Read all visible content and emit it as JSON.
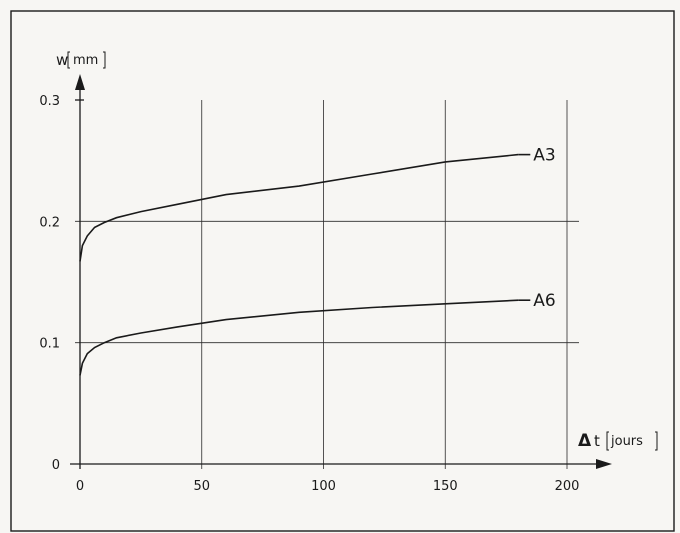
{
  "chart_data": {
    "type": "line",
    "y_var": "w",
    "y_unit": "mm",
    "x_delta": "Δ",
    "x_var": "t",
    "x_unit": "jours",
    "xlim": [
      0,
      200
    ],
    "ylim": [
      0,
      0.3
    ],
    "x_ticks": [
      0,
      50,
      100,
      150,
      200
    ],
    "y_ticks": [
      0,
      0.1,
      0.2,
      0.3
    ],
    "x_tick_labels": [
      "0",
      "50",
      "100",
      "150",
      "200"
    ],
    "y_tick_labels": [
      "0",
      "0.1",
      "0.2",
      "0.3"
    ],
    "grid": true,
    "series": [
      {
        "name": "A3",
        "x": [
          0,
          1,
          3,
          6,
          10,
          15,
          25,
          40,
          60,
          90,
          120,
          150,
          180
        ],
        "y": [
          0.167,
          0.18,
          0.188,
          0.195,
          0.199,
          0.203,
          0.208,
          0.214,
          0.222,
          0.229,
          0.239,
          0.249,
          0.255
        ]
      },
      {
        "name": "A6",
        "x": [
          0,
          1,
          3,
          6,
          10,
          15,
          25,
          40,
          60,
          90,
          120,
          150,
          180
        ],
        "y": [
          0.073,
          0.083,
          0.091,
          0.096,
          0.1,
          0.104,
          0.108,
          0.113,
          0.119,
          0.125,
          0.129,
          0.132,
          0.135
        ]
      }
    ]
  }
}
